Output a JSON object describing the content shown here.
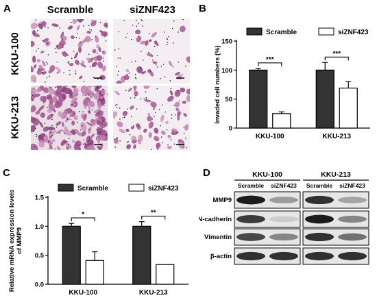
{
  "panel_a": {
    "letter": "A",
    "columns": [
      "Scramble",
      "siZNF423"
    ],
    "rows": [
      "KKU-100",
      "KKU-213"
    ]
  },
  "chart_data": [
    {
      "type": "bar",
      "panel": "B",
      "categories": [
        "KKU-100",
        "KKU-213"
      ],
      "series": [
        {
          "name": "Scramble",
          "values": [
            100,
            100
          ],
          "errors": [
            3,
            13
          ],
          "color": "#333333"
        },
        {
          "name": "siZNF423",
          "values": [
            25,
            69
          ],
          "errors": [
            3,
            11
          ],
          "color": "#ffffff"
        }
      ],
      "ylabel": "Invaded cell numbers (%)",
      "ylim": [
        0,
        150
      ],
      "yticks": [
        "0",
        "50",
        "100",
        "150"
      ],
      "annotations": [
        "***",
        "***"
      ],
      "legend": "top",
      "grid": false
    },
    {
      "type": "bar",
      "panel": "C",
      "categories": [
        "KKU-100",
        "KKU-213"
      ],
      "series": [
        {
          "name": "Scramble",
          "values": [
            1.0,
            1.0
          ],
          "errors": [
            0.05,
            0.08
          ],
          "color": "#333333"
        },
        {
          "name": "siZNF423",
          "values": [
            0.41,
            0.34
          ],
          "errors": [
            0.15,
            0.0
          ],
          "color": "#ffffff"
        }
      ],
      "ylabel": "Relative mRNA expression levels of MMP9",
      "ylabel_lines": [
        "Relative mRNA expression levels",
        "of MMP9"
      ],
      "ylim": [
        0,
        1.5
      ],
      "yticks": [
        "0.0",
        "0.5",
        "1.0",
        "1.5"
      ],
      "annotations": [
        "*",
        "**"
      ],
      "legend": "top",
      "grid": false
    }
  ],
  "panel_b": {
    "letter": "B"
  },
  "panel_c": {
    "letter": "C"
  },
  "panel_d": {
    "letter": "D",
    "groups": [
      "KKU-100",
      "KKU-213"
    ],
    "lanes": [
      "Scramble",
      "siZNF423",
      "Scramble",
      "siZNF423"
    ],
    "proteins": [
      "MMP9",
      "N-cadherin",
      "Vimentin",
      "β-actin"
    ]
  }
}
